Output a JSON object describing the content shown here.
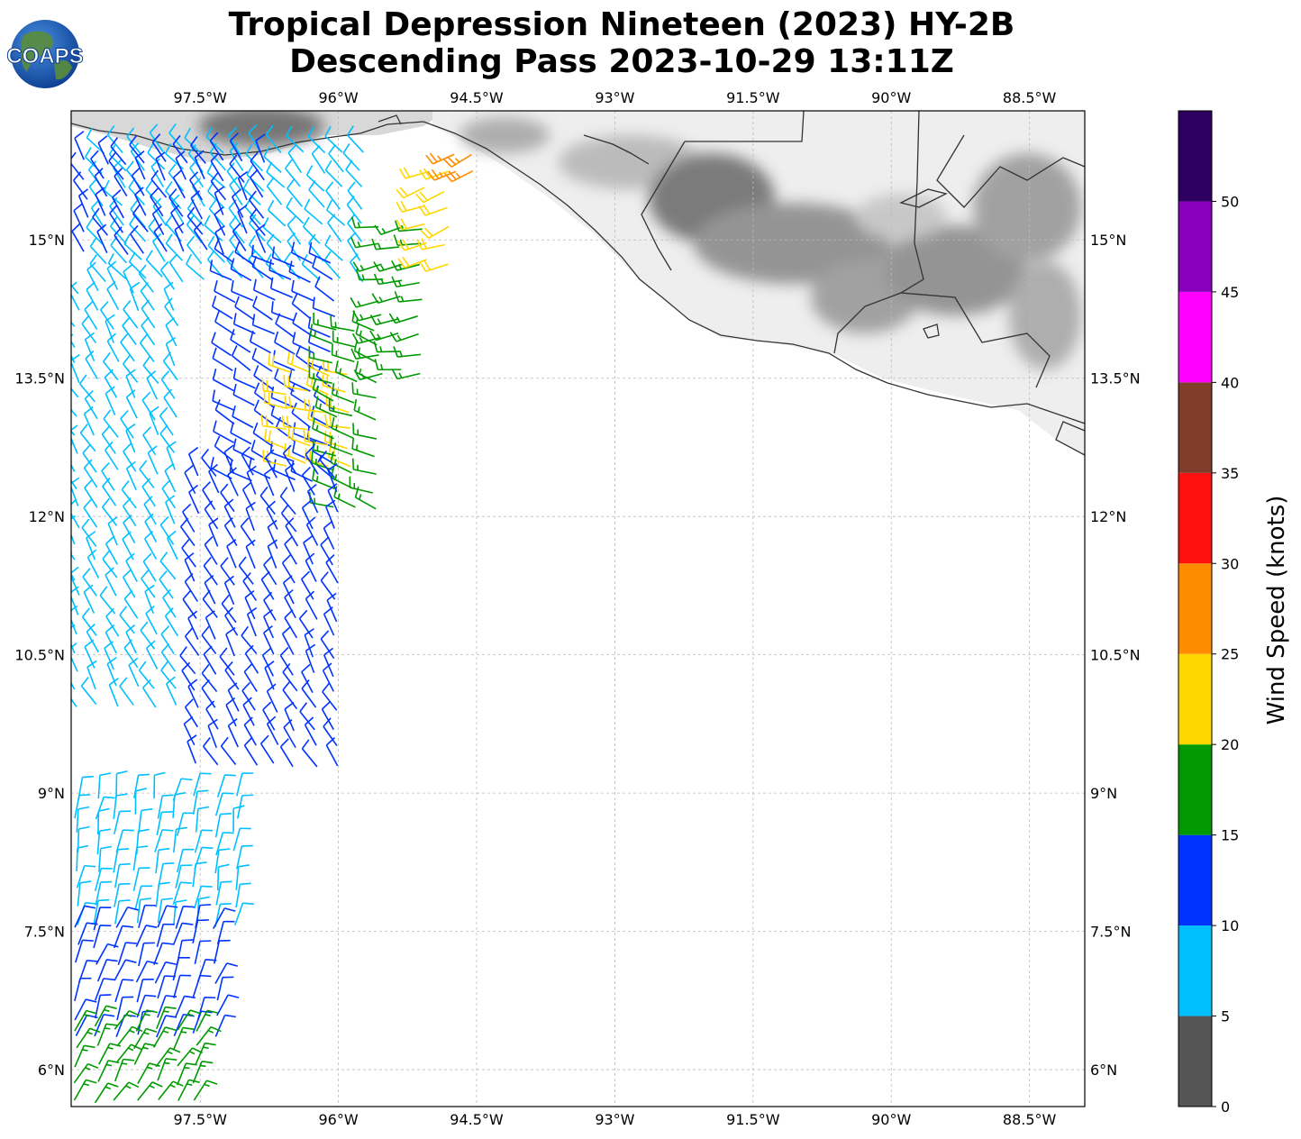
{
  "title": {
    "line1": "Tropical Depression Nineteen (2023) HY-2B",
    "line2": "Descending Pass 2023-10-29 13:11Z"
  },
  "logo": {
    "text": "COAPS",
    "icon": "globe-logo-icon"
  },
  "map": {
    "lon_range": [
      -98.9,
      -87.9
    ],
    "lat_range": [
      5.6,
      16.4
    ],
    "lon_ticks": [
      "97.5°W",
      "96°W",
      "94.5°W",
      "93°W",
      "91.5°W",
      "90°W",
      "88.5°W"
    ],
    "lon_tick_values": [
      -97.5,
      -96,
      -94.5,
      -93,
      -91.5,
      -90,
      -88.5
    ],
    "lat_ticks": [
      "15°N",
      "13.5°N",
      "12°N",
      "10.5°N",
      "9°N",
      "7.5°N",
      "6°N"
    ],
    "lat_tick_values": [
      15,
      13.5,
      12,
      10.5,
      9,
      7.5,
      6
    ],
    "coastline_color": "#333333",
    "grid_color": "#bbbbbb",
    "land_shading": "#777777"
  },
  "colorbar": {
    "label": "Wind Speed (knots)",
    "ticks": [
      "0",
      "5",
      "10",
      "15",
      "20",
      "25",
      "30",
      "35",
      "40",
      "45",
      "50"
    ],
    "bins": [
      {
        "min": 0,
        "max": 5,
        "color": "#555555"
      },
      {
        "min": 5,
        "max": 10,
        "color": "#00bfff"
      },
      {
        "min": 10,
        "max": 15,
        "color": "#0033ff"
      },
      {
        "min": 15,
        "max": 20,
        "color": "#009900"
      },
      {
        "min": 20,
        "max": 25,
        "color": "#ffd700"
      },
      {
        "min": 25,
        "max": 30,
        "color": "#ff8c00"
      },
      {
        "min": 30,
        "max": 35,
        "color": "#ff1010"
      },
      {
        "min": 35,
        "max": 40,
        "color": "#803d2a"
      },
      {
        "min": 40,
        "max": 45,
        "color": "#ff00ff"
      },
      {
        "min": 45,
        "max": 50,
        "color": "#8800bb"
      },
      {
        "min": 50,
        "max": 55,
        "color": "#2d0060"
      }
    ]
  },
  "wind_regions": [
    {
      "name": "north-coast-cyan",
      "lon": [
        -98.6,
        -95.6
      ],
      "lat": [
        14.4,
        16.0
      ],
      "kts": 8,
      "dir": 320
    },
    {
      "name": "north-blue",
      "lon": [
        -98.8,
        -96.8
      ],
      "lat": [
        14.8,
        15.9
      ],
      "kts": 12,
      "dir": 330
    },
    {
      "name": "core-band-blue",
      "lon": [
        -97.2,
        -96.0
      ],
      "lat": [
        12.3,
        14.8
      ],
      "kts": 12,
      "dir": 300
    },
    {
      "name": "core-yellow",
      "lon": [
        -96.6,
        -95.7
      ],
      "lat": [
        12.5,
        13.6
      ],
      "kts": 22,
      "dir": 285
    },
    {
      "name": "core-green",
      "lon": [
        -96.1,
        -95.5
      ],
      "lat": [
        11.9,
        14.1
      ],
      "kts": 17,
      "dir": 290
    },
    {
      "name": "east-edge-green",
      "lon": [
        -95.6,
        -94.9
      ],
      "lat": [
        13.4,
        15.2
      ],
      "kts": 17,
      "dir": 260
    },
    {
      "name": "east-edge-yellow",
      "lon": [
        -95.1,
        -94.7
      ],
      "lat": [
        14.6,
        15.8
      ],
      "kts": 22,
      "dir": 250
    },
    {
      "name": "north-tip-orange",
      "lon": [
        -94.8,
        -94.5
      ],
      "lat": [
        15.6,
        16.0
      ],
      "kts": 27,
      "dir": 240
    },
    {
      "name": "west-cyan",
      "lon": [
        -98.9,
        -97.6
      ],
      "lat": [
        9.8,
        14.5
      ],
      "kts": 8,
      "dir": 330
    },
    {
      "name": "mid-blue",
      "lon": [
        -97.6,
        -96.0
      ],
      "lat": [
        9.2,
        12.5
      ],
      "kts": 12,
      "dir": 330
    },
    {
      "name": "south-cyan",
      "lon": [
        -98.9,
        -97.0
      ],
      "lat": [
        7.5,
        9.0
      ],
      "kts": 8,
      "dir": 10
    },
    {
      "name": "south-blue",
      "lon": [
        -98.9,
        -97.2
      ],
      "lat": [
        6.2,
        7.6
      ],
      "kts": 12,
      "dir": 20
    },
    {
      "name": "far-south-green",
      "lon": [
        -98.9,
        -97.5
      ],
      "lat": [
        5.6,
        6.5
      ],
      "kts": 17,
      "dir": 30
    }
  ]
}
